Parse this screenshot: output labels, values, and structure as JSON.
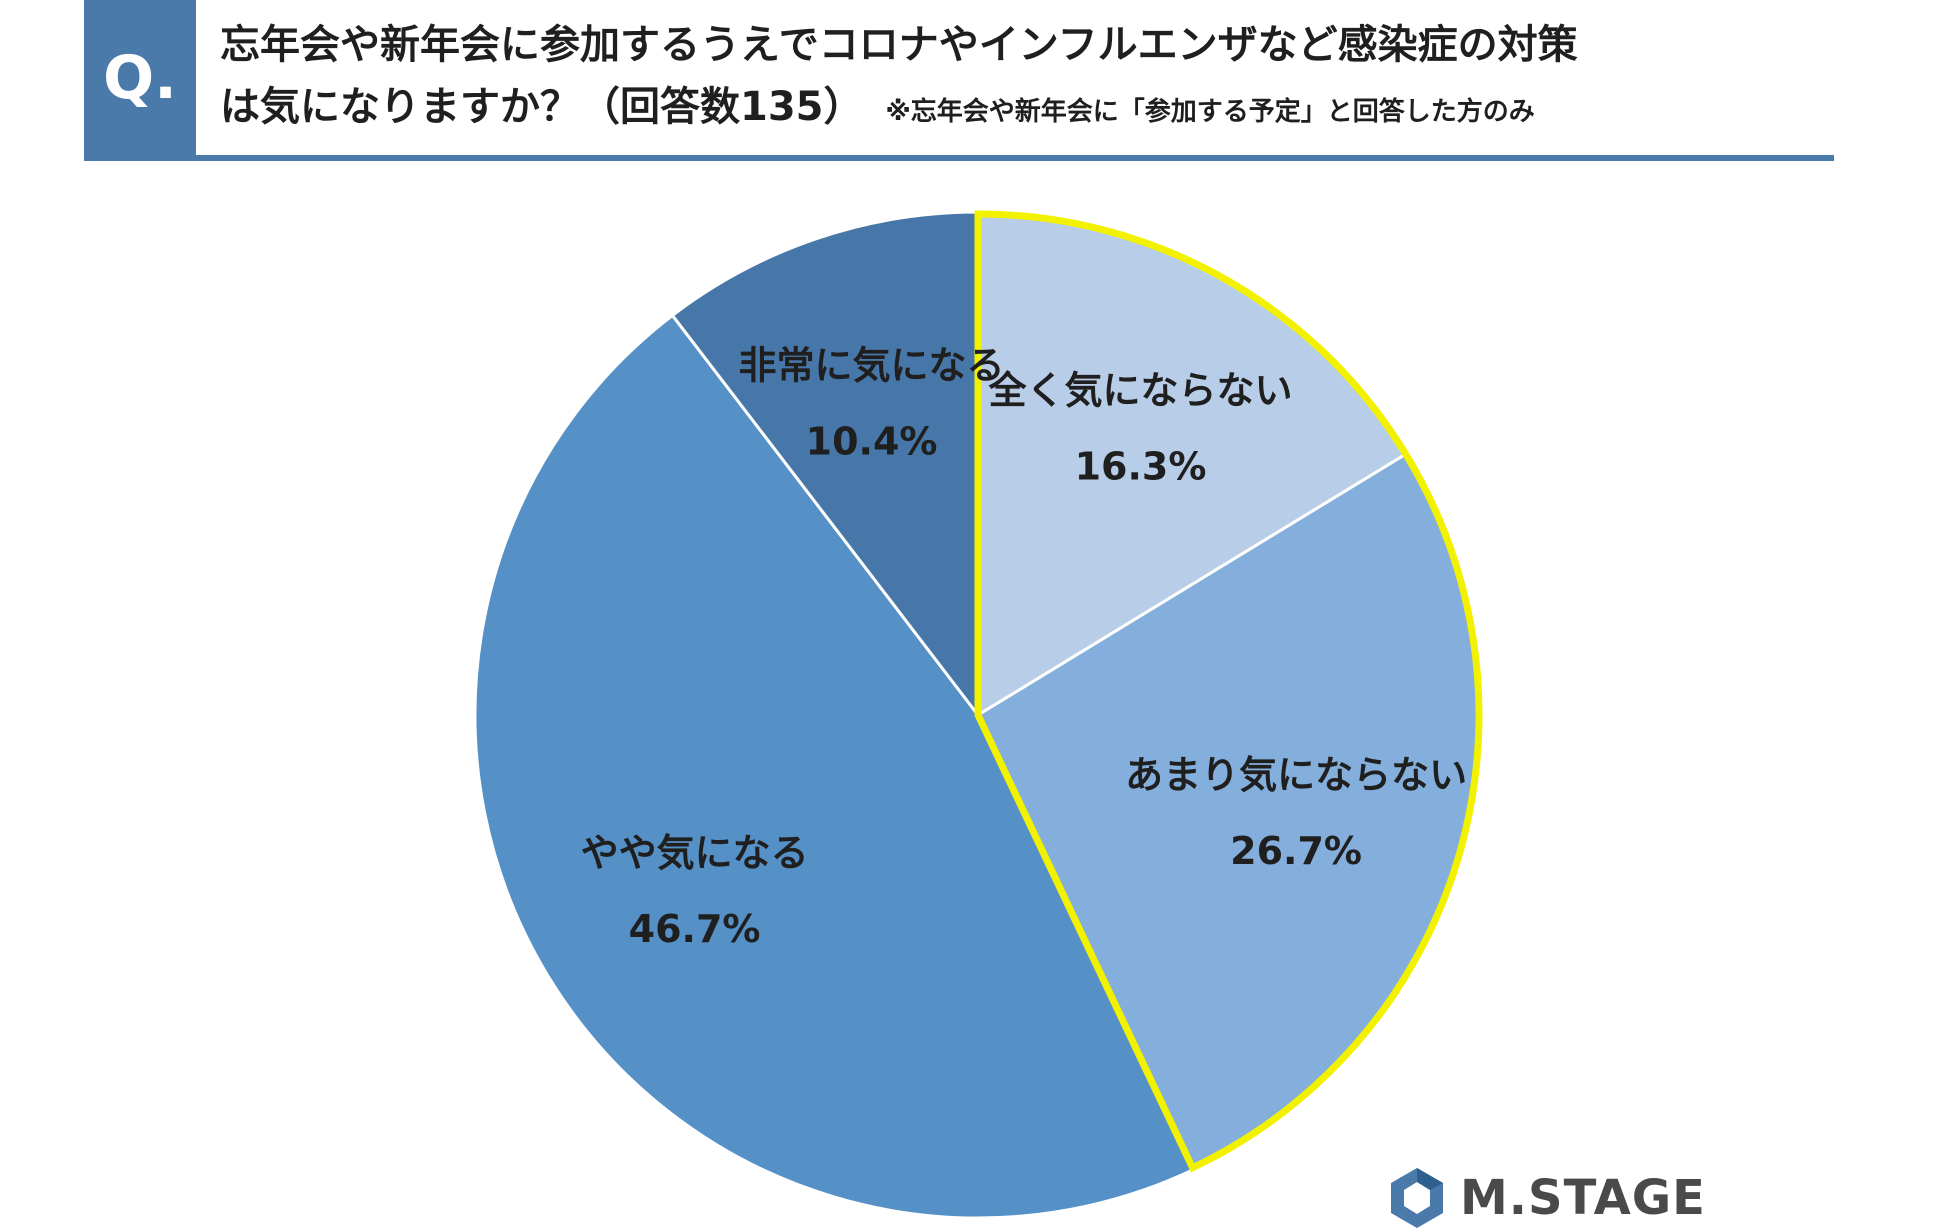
{
  "header": {
    "q_label": "Q.",
    "title_line1": "忘年会や新年会に参加するうえでコロナやインフルエンザなど感染症の対策",
    "title_line2": "は気になりますか？（回答数135）",
    "note": "※忘年会や新年会に「参加する予定」と回答した方のみ"
  },
  "colors": {
    "header_accent": "#4a7aaa",
    "highlight_outline": "#f2f200"
  },
  "chart_data": {
    "type": "pie",
    "start_angle_deg": 0,
    "direction": "clockwise",
    "slices": [
      {
        "label": "全く気にならない",
        "value": 16.3,
        "value_label": "16.3%",
        "color": "#b8cde8",
        "highlighted": true
      },
      {
        "label": "あまり気にならない",
        "value": 26.7,
        "value_label": "26.7%",
        "color": "#84aedb",
        "highlighted": true
      },
      {
        "label": "やや気になる",
        "value": 46.7,
        "value_label": "46.7%",
        "color": "#5590c7",
        "highlighted": false
      },
      {
        "label": "非常に気になる",
        "value": 10.4,
        "value_label": "10.4%",
        "color": "#4777a8",
        "highlighted": false
      }
    ]
  },
  "logo": {
    "text": "M.STAGE",
    "icon": "hexagon-logo-icon"
  }
}
